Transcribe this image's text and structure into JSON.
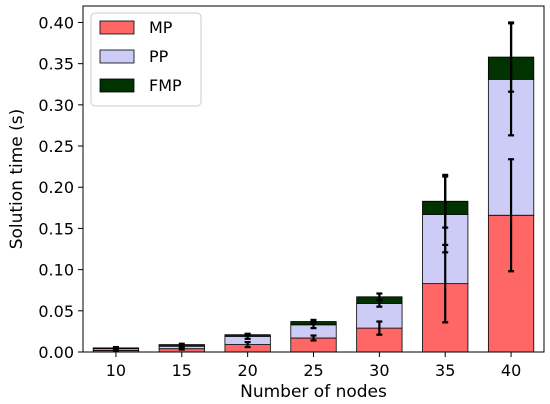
{
  "chart_data": {
    "type": "bar",
    "stacked": true,
    "xlabel": "Number of nodes",
    "ylabel": "Solution time (s)",
    "categories": [
      "10",
      "15",
      "20",
      "25",
      "30",
      "35",
      "40"
    ],
    "ylim": [
      0,
      0.42
    ],
    "yticks": [
      "0.00",
      "0.05",
      "0.10",
      "0.15",
      "0.20",
      "0.25",
      "0.30",
      "0.35",
      "0.40"
    ],
    "grid": false,
    "legend_position": "top-left",
    "series": [
      {
        "name": "MP",
        "color": "#ff6666",
        "values": [
          0.002,
          0.004,
          0.009,
          0.017,
          0.029,
          0.083,
          0.166
        ],
        "error": [
          0.001,
          0.001,
          0.003,
          0.003,
          0.008,
          0.047,
          0.068
        ]
      },
      {
        "name": "PP",
        "color": "#ccccf6",
        "values": [
          0.002,
          0.003,
          0.01,
          0.016,
          0.03,
          0.084,
          0.165
        ],
        "error": [
          0.001,
          0.001,
          0.003,
          0.004,
          0.004,
          0.046,
          0.068
        ]
      },
      {
        "name": "FMP",
        "color": "#003300",
        "values": [
          0.001,
          0.002,
          0.002,
          0.004,
          0.008,
          0.016,
          0.027
        ],
        "error": [
          0.001,
          0.001,
          0.001,
          0.002,
          0.004,
          0.032,
          0.042
        ]
      }
    ]
  }
}
